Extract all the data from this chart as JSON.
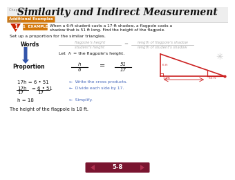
{
  "title": "Similarity and Indirect Measurement",
  "chapter_label": "Chapter 1 Lesson 1-8",
  "additional_examples": "Additional Examples",
  "example_text1": "When a 6-ft student casts a 17-ft shadow, a flagpole casts a",
  "example_text2": "shadow that is 51 ft long. Find the height of the flagpole.",
  "setup_text": "Set up a proportion for the similar triangles.",
  "words_label": "Words",
  "words_num": "flagpole’s height",
  "words_den": "student’s height",
  "words_rnum": "length of flagpole’s shadow",
  "words_rden": "length of student’s shadow",
  "let_text": "Let h = the flagpole’s height.",
  "proportion_label": "Proportion",
  "step1": "17h = 6 • 51",
  "step1_note": "←  Write the cross products.",
  "step2_note": "←  Divide each side by 17.",
  "step3": "h = 18",
  "step3_note": "←  Simplify.",
  "conclusion": "The height of the flagpole is 18 ft.",
  "page_label": "5-8",
  "bg_color": "#ffffff",
  "title_color": "#111111",
  "header_bg": "#e8e8e8",
  "orange": "#d4780a",
  "red_obj": "#cc2200",
  "gray_text": "#aaaaaa",
  "note_blue": "#4466bb",
  "arrow_blue": "#3355aa",
  "diagram_red": "#cc2222",
  "page_bg": "#7a1530",
  "page_arrow": "#b03050"
}
